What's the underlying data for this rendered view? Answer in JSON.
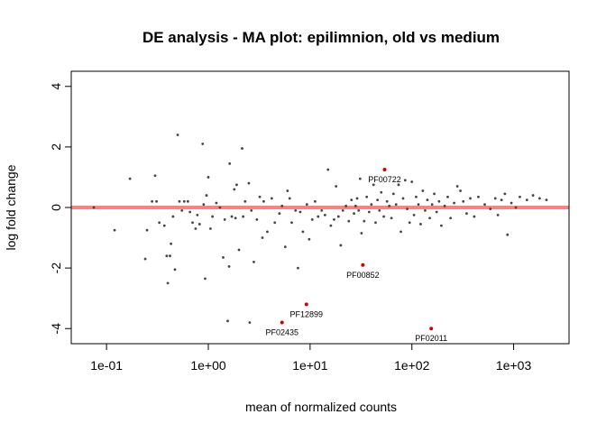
{
  "chart_data": {
    "type": "scatter",
    "title": "DE analysis - MA plot: epilimnion, old vs medium",
    "xlabel": "mean of normalized counts",
    "ylabel": "log fold change",
    "x_scale": "log10",
    "xlim": [
      0.045,
      3500
    ],
    "ylim": [
      -4.5,
      4.5
    ],
    "x_ticks": [
      {
        "value": 0.1,
        "label": "1e-01"
      },
      {
        "value": 1,
        "label": "1e+00"
      },
      {
        "value": 10,
        "label": "1e+01"
      },
      {
        "value": 100,
        "label": "1e+02"
      },
      {
        "value": 1000,
        "label": "1e+03"
      }
    ],
    "y_ticks": [
      {
        "value": 4,
        "label": "4"
      },
      {
        "value": 2,
        "label": "2"
      },
      {
        "value": 0,
        "label": "0"
      },
      {
        "value": -2,
        "label": "-2"
      },
      {
        "value": -4,
        "label": "-4"
      }
    ],
    "hline": {
      "y": 0,
      "color": "#ff8080"
    },
    "colors": {
      "points": "#444444",
      "significant": "#cc0000"
    },
    "series": [
      {
        "points": [
          [
            0.075,
            0.0
          ],
          [
            0.12,
            -0.75
          ],
          [
            0.17,
            0.95
          ],
          [
            0.24,
            -1.7
          ],
          [
            0.25,
            -0.75
          ],
          [
            0.28,
            0.2
          ],
          [
            0.3,
            1.05
          ],
          [
            0.31,
            0.2
          ],
          [
            0.33,
            -0.5
          ],
          [
            0.37,
            -0.6
          ],
          [
            0.39,
            -1.6
          ],
          [
            0.4,
            -2.5
          ],
          [
            0.42,
            -1.6
          ],
          [
            0.43,
            -1.2
          ],
          [
            0.45,
            -0.3
          ],
          [
            0.47,
            -2.05
          ],
          [
            0.5,
            2.4
          ],
          [
            0.52,
            0.2
          ],
          [
            0.55,
            -0.1
          ],
          [
            0.58,
            0.2
          ],
          [
            0.63,
            0.2
          ],
          [
            0.66,
            -0.15
          ],
          [
            0.7,
            -0.5
          ],
          [
            0.75,
            -0.7
          ],
          [
            0.78,
            -0.25
          ],
          [
            0.82,
            -0.55
          ],
          [
            0.88,
            2.1
          ],
          [
            0.9,
            0.1
          ],
          [
            0.93,
            -2.35
          ],
          [
            0.96,
            0.4
          ],
          [
            1.0,
            1.0
          ],
          [
            1.05,
            -0.7
          ],
          [
            1.1,
            -0.3
          ],
          [
            1.2,
            0.15
          ],
          [
            1.3,
            0.0
          ],
          [
            1.4,
            -1.65
          ],
          [
            1.45,
            -0.4
          ],
          [
            1.55,
            -3.75
          ],
          [
            1.6,
            -1.95
          ],
          [
            1.62,
            1.45
          ],
          [
            1.7,
            -0.3
          ],
          [
            1.8,
            0.6
          ],
          [
            1.85,
            -0.35
          ],
          [
            1.9,
            0.75
          ],
          [
            2.0,
            -1.4
          ],
          [
            2.15,
            1.95
          ],
          [
            2.2,
            -0.3
          ],
          [
            2.3,
            0.2
          ],
          [
            2.5,
            0.8
          ],
          [
            2.55,
            -3.8
          ],
          [
            2.65,
            -0.1
          ],
          [
            2.8,
            -1.8
          ],
          [
            3.0,
            -0.4
          ],
          [
            3.2,
            0.35
          ],
          [
            3.4,
            -1.0
          ],
          [
            3.5,
            0.2
          ],
          [
            3.8,
            -0.8
          ],
          [
            4.2,
            0.3
          ],
          [
            4.5,
            -0.5
          ],
          [
            5.0,
            -0.2
          ],
          [
            5.3,
            0.05
          ],
          [
            5.7,
            -1.3
          ],
          [
            6.0,
            0.55
          ],
          [
            6.3,
            0.3
          ],
          [
            6.6,
            -0.5
          ],
          [
            7.2,
            -0.1
          ],
          [
            7.6,
            -2.0
          ],
          [
            8.0,
            -0.15
          ],
          [
            8.5,
            -0.8
          ],
          [
            9.3,
            0.1
          ],
          [
            9.8,
            -1.05
          ],
          [
            10.5,
            -0.4
          ],
          [
            11.2,
            0.2
          ],
          [
            12.0,
            -0.3
          ],
          [
            13.0,
            -0.1
          ],
          [
            14.0,
            -0.25
          ],
          [
            15.0,
            1.25
          ],
          [
            16.0,
            -0.6
          ],
          [
            17.2,
            -0.4
          ],
          [
            18.0,
            0.7
          ],
          [
            19.0,
            -0.3
          ],
          [
            20.0,
            -1.25
          ],
          [
            21.0,
            -0.1
          ],
          [
            22.5,
            0.05
          ],
          [
            24.0,
            -0.45
          ],
          [
            25.5,
            0.25
          ],
          [
            27.0,
            -0.2
          ],
          [
            28.0,
            0.05
          ],
          [
            29.0,
            0.3
          ],
          [
            30.0,
            -0.1
          ],
          [
            31.0,
            0.95
          ],
          [
            32.0,
            -0.85
          ],
          [
            34.0,
            -0.45
          ],
          [
            36.0,
            0.35
          ],
          [
            38.0,
            -0.15
          ],
          [
            40.0,
            0.1
          ],
          [
            42.0,
            0.75
          ],
          [
            44.0,
            -0.5
          ],
          [
            46.0,
            0.25
          ],
          [
            48.0,
            -0.1
          ],
          [
            50.0,
            0.5
          ],
          [
            53.0,
            -0.3
          ],
          [
            57.0,
            0.2
          ],
          [
            60.0,
            0.05
          ],
          [
            63.0,
            -0.35
          ],
          [
            66.0,
            0.45
          ],
          [
            70.0,
            0.1
          ],
          [
            74.0,
            0.75
          ],
          [
            78.0,
            -0.8
          ],
          [
            82.0,
            0.3
          ],
          [
            86.0,
            0.9
          ],
          [
            90.0,
            -0.05
          ],
          [
            95.0,
            -0.5
          ],
          [
            100.0,
            0.85
          ],
          [
            105.0,
            -0.25
          ],
          [
            110.0,
            0.35
          ],
          [
            116.0,
            0.1
          ],
          [
            122.0,
            -0.55
          ],
          [
            128.0,
            0.55
          ],
          [
            135.0,
            -0.1
          ],
          [
            142.0,
            0.25
          ],
          [
            150.0,
            -0.35
          ],
          [
            158.0,
            0.1
          ],
          [
            166.0,
            0.45
          ],
          [
            175.0,
            -0.15
          ],
          [
            185.0,
            0.2
          ],
          [
            195.0,
            -0.6
          ],
          [
            210.0,
            0.05
          ],
          [
            225.0,
            0.35
          ],
          [
            240.0,
            -0.35
          ],
          [
            260.0,
            0.15
          ],
          [
            280.0,
            0.7
          ],
          [
            300.0,
            0.55
          ],
          [
            320.0,
            0.2
          ],
          [
            345.0,
            -0.2
          ],
          [
            375.0,
            0.3
          ],
          [
            410.0,
            -0.3
          ],
          [
            450.0,
            0.35
          ],
          [
            520.0,
            0.1
          ],
          [
            590.0,
            -0.05
          ],
          [
            660.0,
            0.3
          ],
          [
            700.0,
            -0.25
          ],
          [
            760.0,
            0.25
          ],
          [
            820.0,
            0.45
          ],
          [
            870.0,
            -0.9
          ],
          [
            950.0,
            0.15
          ],
          [
            1050.0,
            0.0
          ],
          [
            1150.0,
            0.35
          ],
          [
            1350.0,
            0.25
          ],
          [
            1550.0,
            0.4
          ],
          [
            1800.0,
            0.3
          ],
          [
            2100.0,
            0.25
          ]
        ]
      },
      {
        "significant": true,
        "points": [
          [
            54.0,
            1.25,
            "PF00722"
          ],
          [
            33.0,
            -1.9,
            "PF00852"
          ],
          [
            9.2,
            -3.2,
            "PF12899"
          ],
          [
            5.3,
            -3.8,
            "PF02435"
          ],
          [
            155.0,
            -4.0,
            "PF02011"
          ]
        ]
      }
    ]
  }
}
